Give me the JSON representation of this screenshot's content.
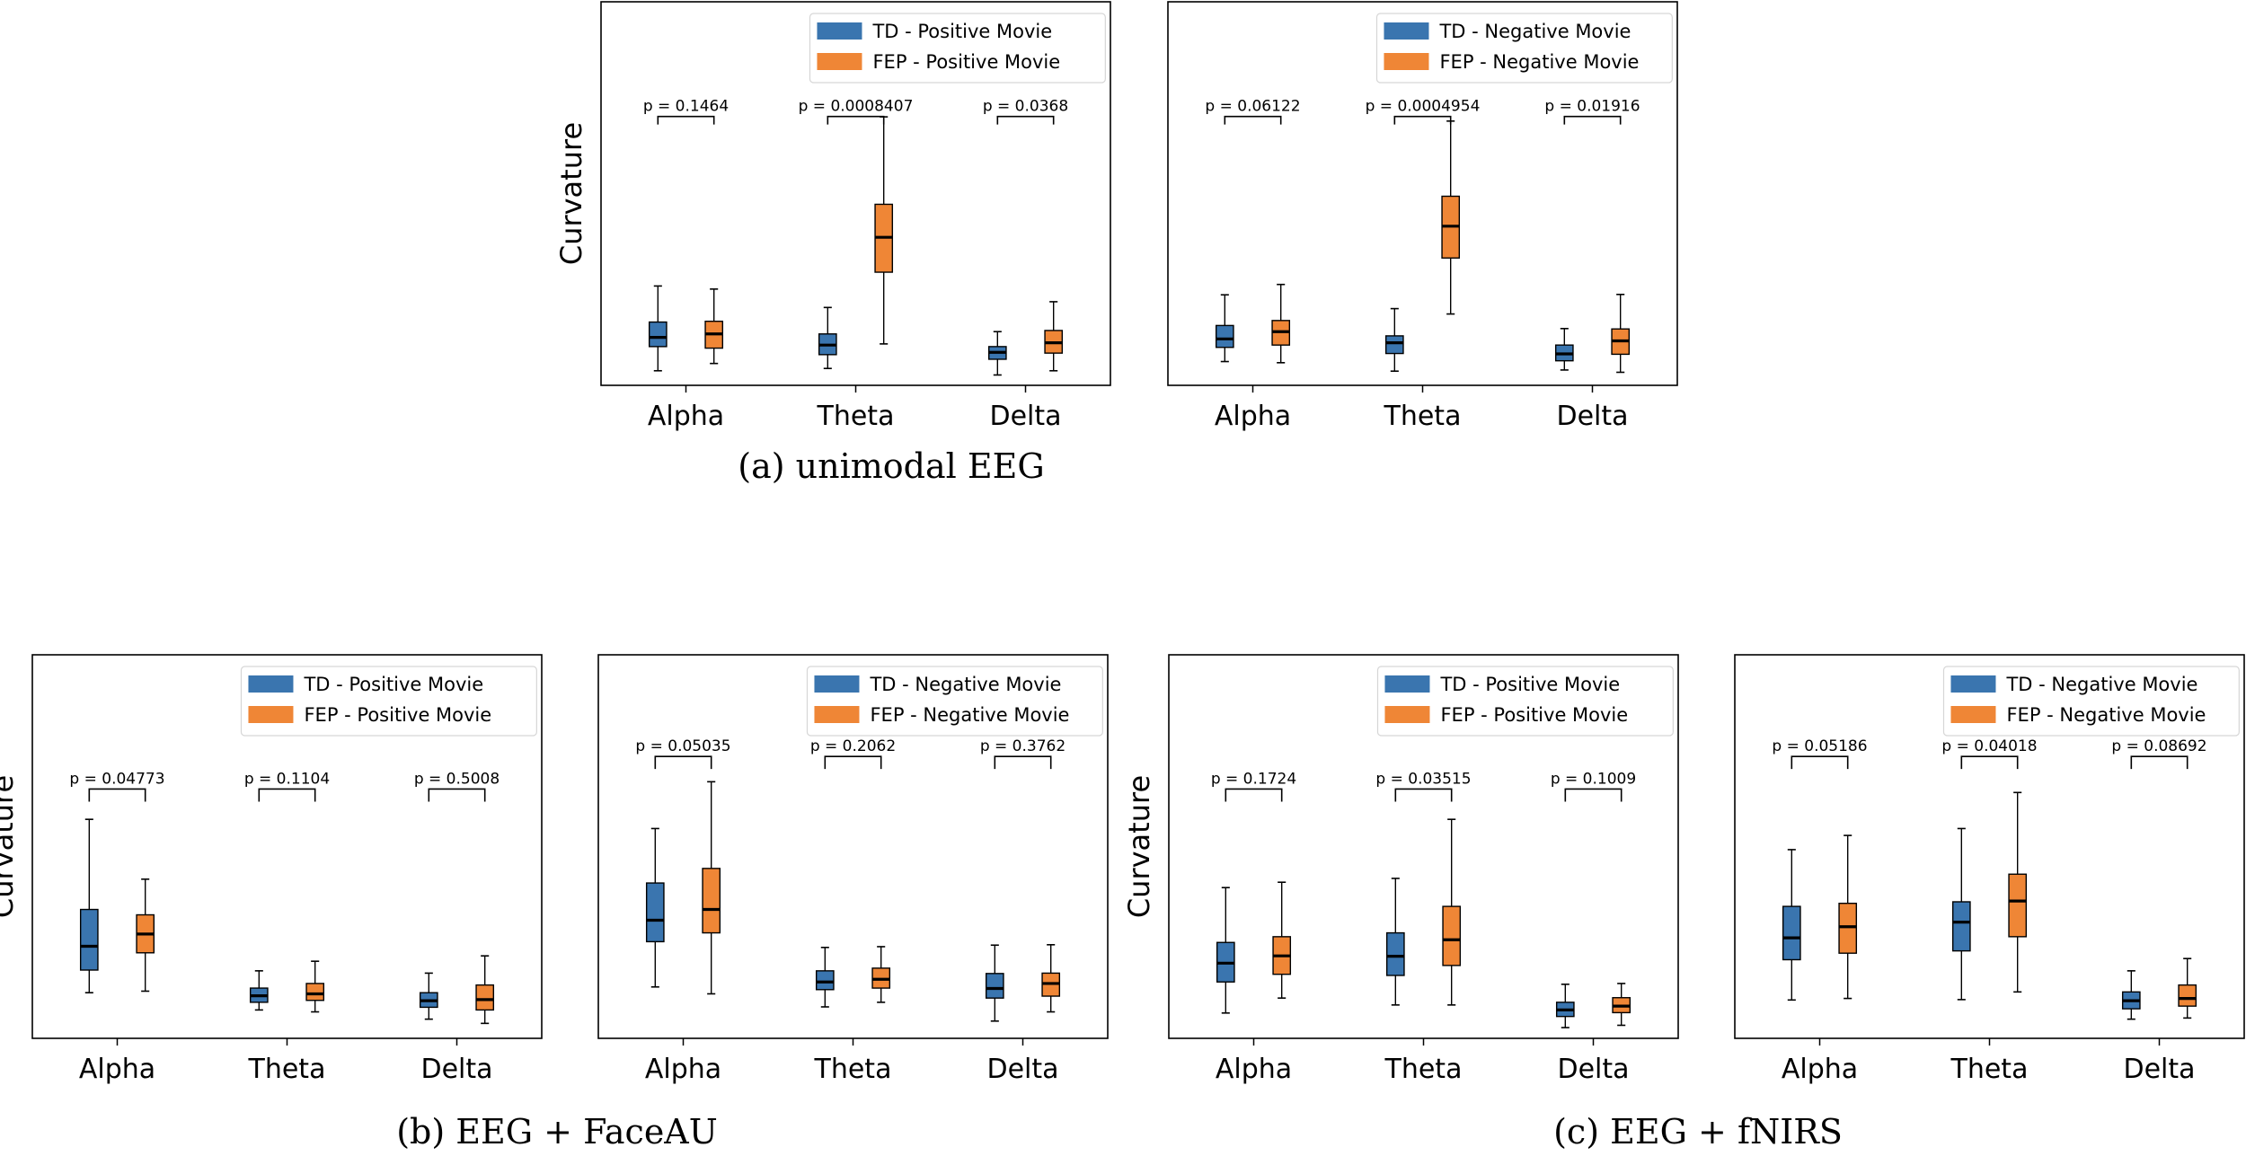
{
  "colors": {
    "td": "#3a75af",
    "fep": "#ef8636",
    "median": "#000000"
  },
  "captions": {
    "a": "(a) unimodal EEG",
    "b": "(b) EEG + FaceAU",
    "c": "(c) EEG + fNIRS"
  },
  "chart_data": [
    {
      "type": "box",
      "group": "a",
      "ylabel": "Curvature",
      "ylim": [
        0,
        100
      ],
      "categories": [
        "Alpha",
        "Theta",
        "Delta"
      ],
      "series": [
        {
          "name": "TD - Positive Movie",
          "color": "#3a75af",
          "boxes": [
            {
              "whislo": 3.8,
              "q1": 10.1,
              "med": 12.5,
              "q3": 16.5,
              "whishi": 25.9
            },
            {
              "whislo": 4.4,
              "q1": 8.0,
              "med": 10.5,
              "q3": 13.4,
              "whishi": 20.3
            },
            {
              "whislo": 2.7,
              "q1": 6.8,
              "med": 8.6,
              "q3": 10.1,
              "whishi": 14.0
            }
          ]
        },
        {
          "name": "FEP - Positive Movie",
          "color": "#ef8636",
          "boxes": [
            {
              "whislo": 5.7,
              "q1": 9.7,
              "med": 13.4,
              "q3": 16.7,
              "whishi": 25.1
            },
            {
              "whislo": 10.8,
              "q1": 29.5,
              "med": 38.6,
              "q3": 47.2,
              "whishi": 70.0
            },
            {
              "whislo": 3.8,
              "q1": 8.4,
              "med": 11.1,
              "q3": 14.3,
              "whishi": 21.8
            }
          ]
        }
      ],
      "pvalues": [
        "p = 0.1464",
        "p = 0.0008407",
        "p = 0.0368"
      ],
      "bracket_level": 70.1
    },
    {
      "type": "box",
      "group": "a",
      "ylabel": "",
      "ylim": [
        0,
        100
      ],
      "categories": [
        "Alpha",
        "Theta",
        "Delta"
      ],
      "series": [
        {
          "name": "TD - Negative Movie",
          "color": "#3a75af",
          "boxes": [
            {
              "whislo": 6.2,
              "q1": 9.9,
              "med": 12.1,
              "q3": 15.6,
              "whishi": 23.6
            },
            {
              "whislo": 3.7,
              "q1": 8.3,
              "med": 11.1,
              "q3": 12.9,
              "whishi": 20.0
            },
            {
              "whislo": 4.0,
              "q1": 6.4,
              "med": 8.2,
              "q3": 10.5,
              "whishi": 14.8
            }
          ]
        },
        {
          "name": "FEP - Negative Movie",
          "color": "#ef8636",
          "boxes": [
            {
              "whislo": 5.9,
              "q1": 10.5,
              "med": 14.0,
              "q3": 16.9,
              "whishi": 26.3
            },
            {
              "whislo": 18.6,
              "q1": 33.2,
              "med": 41.5,
              "q3": 49.3,
              "whishi": 68.9
            },
            {
              "whislo": 3.4,
              "q1": 8.1,
              "med": 11.6,
              "q3": 14.7,
              "whishi": 23.7
            }
          ]
        }
      ],
      "pvalues": [
        "p = 0.06122",
        "p = 0.0004954",
        "p = 0.01916"
      ],
      "bracket_level": 70.1
    },
    {
      "type": "box",
      "group": "b",
      "ylabel": "Curvature",
      "ylim": [
        0,
        100
      ],
      "categories": [
        "Alpha",
        "Theta",
        "Delta"
      ],
      "series": [
        {
          "name": "TD - Positive Movie",
          "color": "#3a75af",
          "boxes": [
            {
              "whislo": 11.9,
              "q1": 17.8,
              "med": 24.0,
              "q3": 33.6,
              "whishi": 57.1
            },
            {
              "whislo": 7.4,
              "q1": 9.4,
              "med": 11.1,
              "q3": 13.1,
              "whishi": 17.6
            },
            {
              "whislo": 5.0,
              "q1": 8.1,
              "med": 9.8,
              "q3": 11.9,
              "whishi": 17.0
            }
          ]
        },
        {
          "name": "FEP - Positive Movie",
          "color": "#ef8636",
          "boxes": [
            {
              "whislo": 12.3,
              "q1": 22.3,
              "med": 27.2,
              "q3": 32.2,
              "whishi": 41.5
            },
            {
              "whislo": 6.9,
              "q1": 9.9,
              "med": 11.6,
              "q3": 14.3,
              "whishi": 20.1
            },
            {
              "whislo": 3.9,
              "q1": 7.4,
              "med": 10.1,
              "q3": 13.9,
              "whishi": 21.5
            }
          ]
        }
      ],
      "pvalues": [
        "p = 0.04773",
        "p = 0.1104",
        "p = 0.5008"
      ],
      "bracket_level": 65.0
    },
    {
      "type": "box",
      "group": "b",
      "ylabel": "",
      "ylim": [
        0,
        100
      ],
      "categories": [
        "Alpha",
        "Theta",
        "Delta"
      ],
      "series": [
        {
          "name": "TD - Negative Movie",
          "color": "#3a75af",
          "boxes": [
            {
              "whislo": 13.4,
              "q1": 25.2,
              "med": 30.8,
              "q3": 40.5,
              "whishi": 54.7
            },
            {
              "whislo": 8.2,
              "q1": 12.7,
              "med": 14.7,
              "q3": 17.6,
              "whishi": 23.7
            },
            {
              "whislo": 4.5,
              "q1": 10.5,
              "med": 13.0,
              "q3": 16.9,
              "whishi": 24.3
            }
          ]
        },
        {
          "name": "FEP - Negative Movie",
          "color": "#ef8636",
          "boxes": [
            {
              "whislo": 11.6,
              "q1": 27.5,
              "med": 33.6,
              "q3": 44.3,
              "whishi": 66.9
            },
            {
              "whislo": 9.4,
              "q1": 13.1,
              "med": 15.4,
              "q3": 18.3,
              "whishi": 23.9
            },
            {
              "whislo": 6.9,
              "q1": 11.0,
              "med": 14.3,
              "q3": 17.0,
              "whishi": 24.4
            }
          ]
        }
      ],
      "pvalues": [
        "p = 0.05035",
        "p = 0.2062",
        "p = 0.3762"
      ],
      "bracket_level": 73.5
    },
    {
      "type": "box",
      "group": "c",
      "ylabel": "Curvature",
      "ylim": [
        0,
        100
      ],
      "categories": [
        "Alpha",
        "Theta",
        "Delta"
      ],
      "series": [
        {
          "name": "TD - Positive Movie",
          "color": "#3a75af",
          "boxes": [
            {
              "whislo": 6.6,
              "q1": 14.7,
              "med": 19.6,
              "q3": 25.0,
              "whishi": 39.3
            },
            {
              "whislo": 8.7,
              "q1": 16.4,
              "med": 21.4,
              "q3": 27.5,
              "whishi": 41.7
            },
            {
              "whislo": 2.8,
              "q1": 5.7,
              "med": 7.4,
              "q3": 9.4,
              "whishi": 14.1
            }
          ]
        },
        {
          "name": "FEP - Positive Movie",
          "color": "#ef8636",
          "boxes": [
            {
              "whislo": 10.5,
              "q1": 16.7,
              "med": 21.5,
              "q3": 26.5,
              "whishi": 40.7
            },
            {
              "whislo": 8.7,
              "q1": 19.0,
              "med": 25.7,
              "q3": 34.4,
              "whishi": 57.1
            },
            {
              "whislo": 3.4,
              "q1": 6.7,
              "med": 8.4,
              "q3": 10.6,
              "whishi": 14.3
            }
          ]
        }
      ],
      "pvalues": [
        "p = 0.1724",
        "p = 0.03515",
        "p = 0.1009"
      ],
      "bracket_level": 65.0
    },
    {
      "type": "box",
      "group": "c",
      "ylabel": "",
      "ylim": [
        0,
        100
      ],
      "categories": [
        "Alpha",
        "Theta",
        "Delta"
      ],
      "series": [
        {
          "name": "TD - Negative Movie",
          "color": "#3a75af",
          "boxes": [
            {
              "whislo": 10.0,
              "q1": 20.5,
              "med": 26.2,
              "q3": 34.4,
              "whishi": 49.2
            },
            {
              "whislo": 10.1,
              "q1": 22.8,
              "med": 30.3,
              "q3": 35.6,
              "whishi": 54.7
            },
            {
              "whislo": 5.0,
              "q1": 7.7,
              "med": 9.8,
              "q3": 12.1,
              "whishi": 17.6
            }
          ]
        },
        {
          "name": "FEP - Negative Movie",
          "color": "#ef8636",
          "boxes": [
            {
              "whislo": 10.4,
              "q1": 22.2,
              "med": 29.1,
              "q3": 35.2,
              "whishi": 52.9
            },
            {
              "whislo": 12.1,
              "q1": 26.5,
              "med": 35.8,
              "q3": 42.8,
              "whishi": 64.1
            },
            {
              "whislo": 5.3,
              "q1": 8.4,
              "med": 10.4,
              "q3": 13.9,
              "whishi": 20.8
            }
          ]
        }
      ],
      "pvalues": [
        "p = 0.05186",
        "p = 0.04018",
        "p = 0.08692"
      ],
      "bracket_level": 73.5
    }
  ]
}
